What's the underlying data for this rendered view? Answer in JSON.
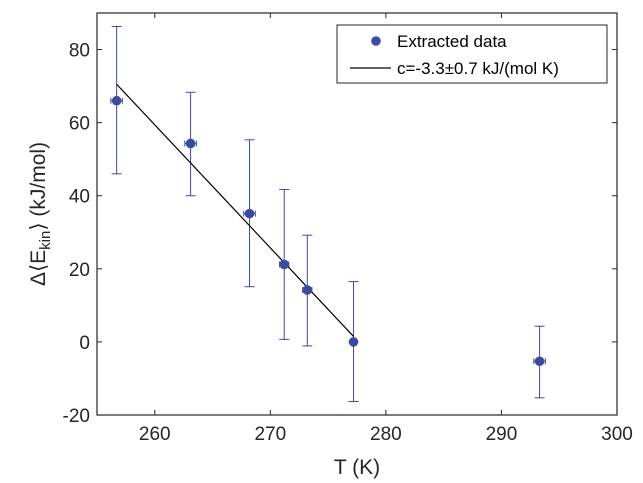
{
  "chart_data": {
    "type": "scatter",
    "xlabel": "T (K)",
    "ylabel": {
      "prefix": "Δ⟨E",
      "subscript": "kin",
      "suffix": "⟩ (kJ/mol)"
    },
    "xlim": [
      255,
      300
    ],
    "ylim": [
      -20,
      90
    ],
    "xticks": [
      260,
      270,
      280,
      290,
      300
    ],
    "yticks": [
      -20,
      0,
      20,
      40,
      60,
      80
    ],
    "grid": false,
    "legend_position": "top-right",
    "colors": {
      "data": "#3a4aa4",
      "fit": "#000000",
      "axis": "#262626"
    },
    "series": [
      {
        "name": "Extracted data",
        "kind": "points_with_errorbars",
        "x": [
          256.7,
          263.1,
          268.2,
          271.2,
          273.2,
          277.2,
          293.3
        ],
        "y": [
          66,
          54.3,
          35.1,
          21.2,
          14.2,
          0,
          -5.3
        ],
        "y_err_low": [
          20,
          14.3,
          20,
          20.5,
          15.3,
          16.3,
          10
        ],
        "y_err_high": [
          20.3,
          14,
          20.2,
          20.5,
          15,
          16.5,
          9.6
        ],
        "x_err": [
          0.5,
          0.5,
          0.5,
          0.4,
          0.4,
          0.2,
          0.5
        ]
      },
      {
        "name": "c=-3.3±0.7 kJ/(mol K)",
        "kind": "line",
        "x": [
          256.7,
          277.2
        ],
        "y": [
          70.5,
          1.5
        ]
      }
    ]
  }
}
